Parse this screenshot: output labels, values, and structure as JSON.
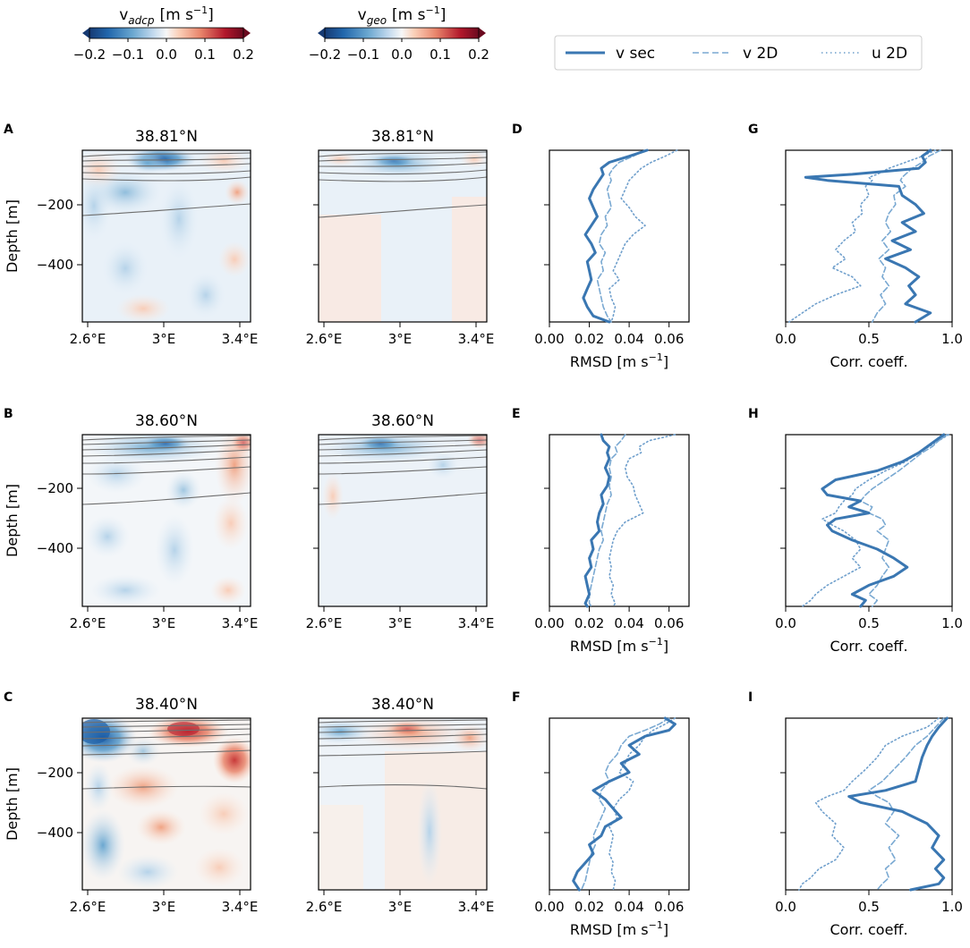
{
  "colorbars": [
    {
      "label_main": "v",
      "label_sub": "adcp",
      "label_units": "[m s",
      "label_exp": "−1",
      "label_close": "]",
      "ticks": [
        "−0.2",
        "−0.1",
        "0.0",
        "0.1",
        "0.2"
      ]
    },
    {
      "label_main": "v",
      "label_sub": "geo",
      "label_units": "[m s",
      "label_exp": "−1",
      "label_close": "]",
      "ticks": [
        "−0.2",
        "−0.1",
        "0.0",
        "0.1",
        "0.2"
      ]
    }
  ],
  "colors": {
    "v_sec": "#3a77b2",
    "v_2d": "#7aa9d2",
    "u_2d": "#6f9fcc",
    "contour": "#6e6e6e",
    "neg_strong": "#2166ac",
    "pos_strong": "#b2182b"
  },
  "chart_data": {
    "type": "line",
    "legend": {
      "placement": "top-right",
      "entries": [
        "v sec",
        "v 2D",
        "u 2D"
      ]
    },
    "map_x_ticks": [
      "2.6°E",
      "3°E",
      "3.4°E"
    ],
    "depth_label": "Depth [m]",
    "depth_ticks": [
      "−200",
      "−400"
    ],
    "depth_range": [
      -590,
      -20
    ],
    "rmsd_label": "RMSD [m s",
    "rmsd_label_exp": "−1",
    "rmsd_label_close": "]",
    "rmsd_ticks": [
      "0.00",
      "0.02",
      "0.04",
      "0.06"
    ],
    "rmsd_range": [
      0,
      0.07
    ],
    "corr_label": "Corr. coeff.",
    "corr_ticks": [
      "0.0",
      "0.5",
      "1.0"
    ],
    "corr_range": [
      0,
      1
    ],
    "rows": [
      {
        "latitude": "38.81°N",
        "letters": [
          "A",
          "D",
          "G"
        ],
        "rmsd": {
          "depth": [
            -20,
            -40,
            -60,
            -80,
            -100,
            -120,
            -150,
            -180,
            -210,
            -240,
            -270,
            -300,
            -330,
            -360,
            -390,
            -420,
            -450,
            -480,
            -510,
            -540,
            -570,
            -590
          ],
          "v_sec": [
            0.049,
            0.04,
            0.03,
            0.026,
            0.027,
            0.025,
            0.022,
            0.02,
            0.022,
            0.024,
            0.021,
            0.018,
            0.021,
            0.023,
            0.019,
            0.02,
            0.021,
            0.019,
            0.017,
            0.019,
            0.022,
            0.03
          ],
          "v_2d": [
            0.048,
            0.042,
            0.035,
            0.032,
            0.03,
            0.031,
            0.029,
            0.03,
            0.031,
            0.028,
            0.029,
            0.026,
            0.025,
            0.028,
            0.026,
            0.027,
            0.024,
            0.025,
            0.026,
            0.027,
            0.029,
            0.031
          ],
          "u_2d": [
            0.064,
            0.058,
            0.051,
            0.046,
            0.043,
            0.04,
            0.038,
            0.036,
            0.04,
            0.043,
            0.048,
            0.042,
            0.038,
            0.036,
            0.034,
            0.032,
            0.035,
            0.03,
            0.031,
            0.033,
            0.032,
            0.031
          ]
        },
        "corr": {
          "depth": [
            -20,
            -40,
            -60,
            -80,
            -100,
            -110,
            -120,
            -140,
            -170,
            -200,
            -230,
            -260,
            -290,
            -320,
            -350,
            -380,
            -410,
            -440,
            -470,
            -500,
            -530,
            -560,
            -590
          ],
          "v_sec": [
            0.87,
            0.82,
            0.84,
            0.8,
            0.4,
            0.12,
            0.25,
            0.68,
            0.7,
            0.78,
            0.83,
            0.7,
            0.78,
            0.64,
            0.75,
            0.6,
            0.72,
            0.8,
            0.74,
            0.78,
            0.72,
            0.87,
            0.78
          ],
          "v_2d": [
            0.93,
            0.86,
            0.82,
            0.76,
            0.72,
            0.7,
            0.69,
            0.72,
            0.65,
            0.66,
            0.62,
            0.6,
            0.63,
            0.58,
            0.62,
            0.56,
            0.6,
            0.58,
            0.62,
            0.57,
            0.6,
            0.55,
            0.52
          ],
          "u_2d": [
            0.9,
            0.82,
            0.72,
            0.62,
            0.55,
            0.5,
            0.52,
            0.48,
            0.5,
            0.45,
            0.46,
            0.4,
            0.42,
            0.35,
            0.3,
            0.36,
            0.28,
            0.4,
            0.45,
            0.3,
            0.18,
            0.1,
            0.02
          ]
        }
      },
      {
        "latitude": "38.60°N",
        "letters": [
          "B",
          "E",
          "H"
        ],
        "rmsd": {
          "depth": [
            -20,
            -40,
            -60,
            -80,
            -100,
            -130,
            -160,
            -190,
            -220,
            -250,
            -280,
            -310,
            -340,
            -370,
            -400,
            -430,
            -460,
            -490,
            -520,
            -550,
            -580,
            -590
          ],
          "v_sec": [
            0.026,
            0.027,
            0.03,
            0.029,
            0.03,
            0.028,
            0.03,
            0.029,
            0.026,
            0.027,
            0.025,
            0.024,
            0.025,
            0.021,
            0.022,
            0.02,
            0.021,
            0.018,
            0.019,
            0.02,
            0.018,
            0.019
          ],
          "v_2d": [
            0.038,
            0.036,
            0.033,
            0.034,
            0.031,
            0.03,
            0.031,
            0.03,
            0.031,
            0.029,
            0.028,
            0.027,
            0.026,
            0.027,
            0.025,
            0.024,
            0.023,
            0.022,
            0.021,
            0.02,
            0.02,
            0.021
          ],
          "u_2d": [
            0.063,
            0.05,
            0.045,
            0.046,
            0.04,
            0.038,
            0.039,
            0.042,
            0.043,
            0.045,
            0.047,
            0.038,
            0.034,
            0.032,
            0.031,
            0.03,
            0.031,
            0.03,
            0.032,
            0.031,
            0.033,
            0.032
          ]
        },
        "corr": {
          "depth": [
            -20,
            -40,
            -60,
            -80,
            -110,
            -140,
            -170,
            -200,
            -220,
            -240,
            -260,
            -280,
            -300,
            -320,
            -340,
            -370,
            -400,
            -430,
            -460,
            -490,
            -520,
            -550,
            -570,
            -590
          ],
          "v_sec": [
            0.95,
            0.9,
            0.85,
            0.8,
            0.7,
            0.55,
            0.3,
            0.22,
            0.25,
            0.45,
            0.38,
            0.5,
            0.3,
            0.25,
            0.28,
            0.4,
            0.55,
            0.65,
            0.73,
            0.65,
            0.5,
            0.4,
            0.48,
            0.45
          ],
          "v_2d": [
            0.97,
            0.92,
            0.88,
            0.82,
            0.75,
            0.68,
            0.6,
            0.52,
            0.48,
            0.45,
            0.52,
            0.5,
            0.58,
            0.6,
            0.55,
            0.62,
            0.6,
            0.58,
            0.62,
            0.58,
            0.55,
            0.5,
            0.55,
            0.52
          ],
          "u_2d": [
            0.98,
            0.92,
            0.86,
            0.8,
            0.72,
            0.6,
            0.5,
            0.42,
            0.4,
            0.35,
            0.32,
            0.3,
            0.22,
            0.28,
            0.35,
            0.42,
            0.45,
            0.4,
            0.45,
            0.35,
            0.25,
            0.18,
            0.15,
            0.1
          ]
        }
      },
      {
        "latitude": "38.40°N",
        "letters": [
          "C",
          "F",
          "I"
        ],
        "rmsd": {
          "depth": [
            -20,
            -40,
            -60,
            -80,
            -110,
            -140,
            -170,
            -200,
            -230,
            -260,
            -290,
            -320,
            -350,
            -380,
            -410,
            -440,
            -470,
            -500,
            -530,
            -560,
            -590
          ],
          "v_sec": [
            0.058,
            0.063,
            0.06,
            0.048,
            0.04,
            0.045,
            0.036,
            0.04,
            0.03,
            0.022,
            0.028,
            0.032,
            0.036,
            0.028,
            0.026,
            0.02,
            0.022,
            0.018,
            0.014,
            0.012,
            0.015
          ],
          "v_2d": [
            0.06,
            0.055,
            0.048,
            0.04,
            0.036,
            0.034,
            0.03,
            0.028,
            0.03,
            0.026,
            0.025,
            0.028,
            0.026,
            0.024,
            0.022,
            0.023,
            0.021,
            0.02,
            0.019,
            0.018,
            0.016
          ],
          "u_2d": [
            0.063,
            0.058,
            0.052,
            0.048,
            0.045,
            0.04,
            0.038,
            0.035,
            0.042,
            0.04,
            0.035,
            0.032,
            0.034,
            0.03,
            0.032,
            0.031,
            0.03,
            0.032,
            0.031,
            0.033,
            0.032
          ]
        },
        "corr": {
          "depth": [
            -20,
            -50,
            -80,
            -110,
            -150,
            -190,
            -230,
            -260,
            -280,
            -300,
            -330,
            -370,
            -410,
            -450,
            -490,
            -520,
            -550,
            -570,
            -590
          ],
          "v_sec": [
            0.97,
            0.92,
            0.88,
            0.85,
            0.82,
            0.8,
            0.78,
            0.6,
            0.38,
            0.45,
            0.7,
            0.85,
            0.92,
            0.88,
            0.95,
            0.9,
            0.95,
            0.92,
            0.75
          ],
          "v_2d": [
            0.95,
            0.9,
            0.85,
            0.78,
            0.72,
            0.65,
            0.58,
            0.5,
            0.55,
            0.62,
            0.65,
            0.6,
            0.68,
            0.62,
            0.66,
            0.6,
            0.62,
            0.58,
            0.55
          ],
          "u_2d": [
            0.92,
            0.85,
            0.7,
            0.6,
            0.55,
            0.48,
            0.4,
            0.35,
            0.25,
            0.18,
            0.22,
            0.3,
            0.28,
            0.35,
            0.3,
            0.2,
            0.15,
            0.1,
            0.08
          ]
        }
      }
    ]
  }
}
